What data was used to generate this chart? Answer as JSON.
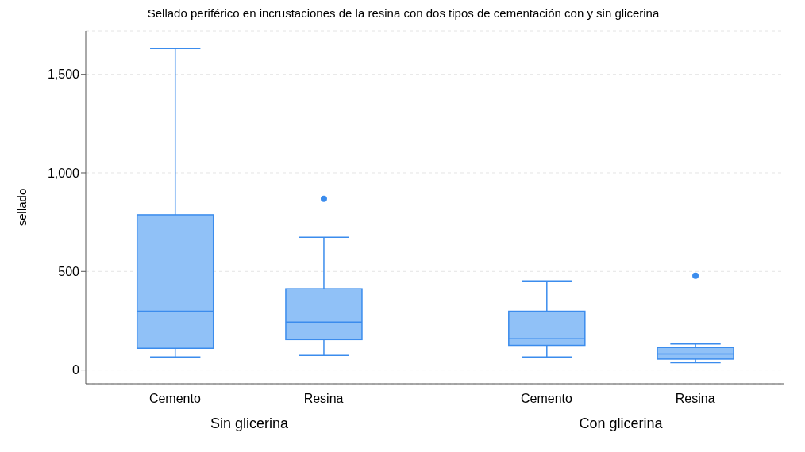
{
  "chart_data": {
    "type": "box",
    "title": "Sellado periférico en incrustaciones de la resina con dos tipos de cementación con y sin glicerina",
    "ylabel": "sellado",
    "categories": [
      "Cemento",
      "Resina",
      "Cemento",
      "Resina"
    ],
    "annotations": [
      "Sin glicerina",
      "Con glicerina"
    ],
    "color": "#90c1f7",
    "boxes": [
      {
        "low": 66,
        "q1": 110,
        "median": 298,
        "q3": 787,
        "high": 1630
      },
      {
        "low": 74,
        "q1": 154,
        "median": 243,
        "q3": 412,
        "high": 673,
        "outliers": [
          868
        ]
      },
      {
        "low": 66,
        "q1": 125,
        "median": 158,
        "q3": 298,
        "high": 452
      },
      {
        "low": 37,
        "q1": 55,
        "median": 81,
        "q3": 114,
        "high": 132,
        "outliers": [
          478
        ]
      }
    ],
    "ylim": [
      -70,
      1720
    ],
    "yticks": [
      0,
      500,
      {
        "value": 1000,
        "label": "1,000"
      },
      {
        "value": 1500,
        "label": "1,500"
      }
    ],
    "grid": "y",
    "legend": false
  }
}
